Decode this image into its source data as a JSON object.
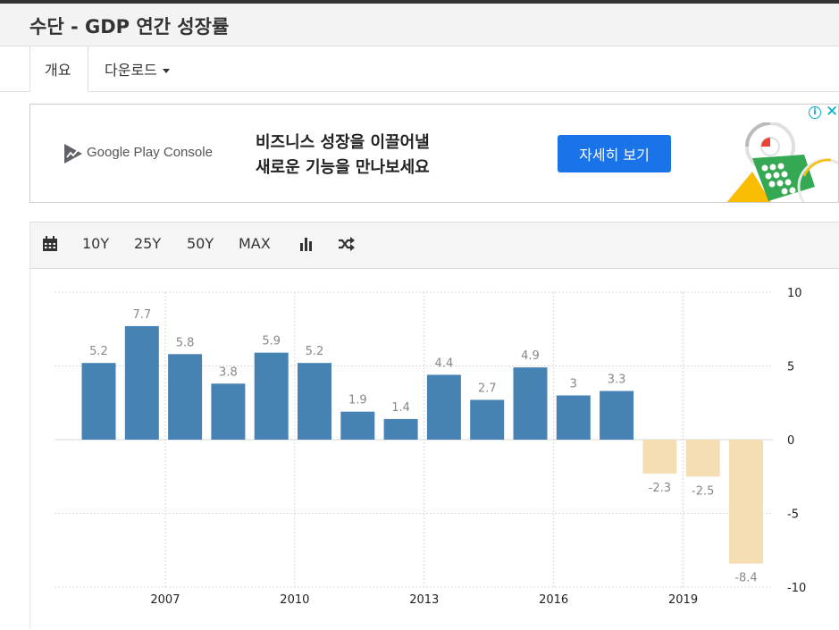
{
  "header": {
    "title": "수단 - GDP 연간 성장률"
  },
  "tabs": [
    {
      "label": "개요"
    },
    {
      "label": "다운로드"
    }
  ],
  "ad": {
    "brand": "Google Play Console",
    "headline_line1": "비즈니스 성장을 이끌어낼",
    "headline_line2": "새로운 기능을 만나보세요",
    "cta": "자세히 보기",
    "info_icon": "i",
    "close_icon": "✕"
  },
  "toolbar": {
    "ranges": [
      "10Y",
      "25Y",
      "50Y",
      "MAX"
    ],
    "icons": [
      "calendar-icon",
      "bar-chart-icon",
      "shuffle-icon"
    ]
  },
  "chart_data": {
    "type": "bar",
    "title": "",
    "xlabel": "",
    "ylabel": "",
    "x": [
      2005,
      2006,
      2007,
      2008,
      2009,
      2010,
      2011,
      2012,
      2013,
      2014,
      2015,
      2016,
      2017,
      2018,
      2019,
      2020
    ],
    "values": [
      5.2,
      7.7,
      5.8,
      3.8,
      5.9,
      5.2,
      1.9,
      1.4,
      4.4,
      2.7,
      4.9,
      3,
      3.3,
      -2.3,
      -2.5,
      -8.4
    ],
    "labels": [
      "5.2",
      "7.7",
      "5.8",
      "3.8",
      "5.9",
      "5.2",
      "1.9",
      "1.4",
      "4.4",
      "2.7",
      "4.9",
      "3",
      "3.3",
      "-2.3",
      "-2.5",
      "-8.4"
    ],
    "ylim": [
      -10,
      10
    ],
    "yticks": [
      10,
      5,
      0,
      -5,
      -10
    ],
    "xticks": [
      "2007",
      "2010",
      "2013",
      "2016",
      "2019"
    ],
    "grid": true,
    "y_axis_side": "right",
    "colors": {
      "positive": "#4682b4",
      "negative": "#f5deb3"
    }
  }
}
